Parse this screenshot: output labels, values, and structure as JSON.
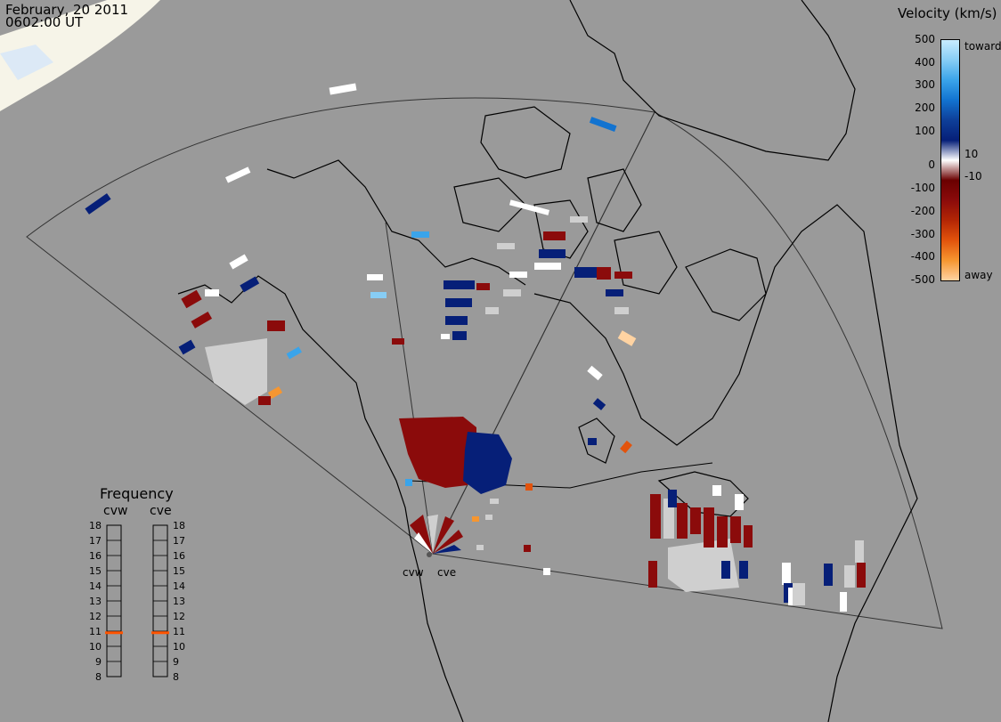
{
  "header": {
    "date": "February, 20 2011",
    "time": "0602:00 UT"
  },
  "radars": {
    "west_label": "cvw",
    "east_label": "cve"
  },
  "velocity_legend": {
    "title": "Velocity (km/s)",
    "ticks": [
      "500",
      "400",
      "300",
      "200",
      "100",
      "10",
      "0",
      "-10",
      "-100",
      "-200",
      "-300",
      "-400",
      "-500"
    ],
    "toward_label": "toward",
    "away_label": "away",
    "colors": [
      "#c8ecff",
      "#87cdf5",
      "#3aa4ea",
      "#1273d0",
      "#0e3f99",
      "#061f78",
      "#ffffff",
      "#6a0000",
      "#8b0b0b",
      "#b32605",
      "#e2530c",
      "#f69630",
      "#ffd3a2"
    ]
  },
  "frequency_panel": {
    "title": "Frequency",
    "west_label": "cvw",
    "east_label": "cve",
    "levels": [
      "18",
      "17",
      "16",
      "15",
      "14",
      "13",
      "12",
      "11",
      "10",
      "9",
      "8"
    ],
    "cvw_frequency_mhz": 10.9,
    "cve_frequency_mhz": 10.9,
    "marker_color": "#ff5500"
  },
  "colors": {
    "background": "#9a9a9a",
    "coast": "#000000",
    "fov": "#333333",
    "ground_scatter": "#cfcfcf"
  }
}
